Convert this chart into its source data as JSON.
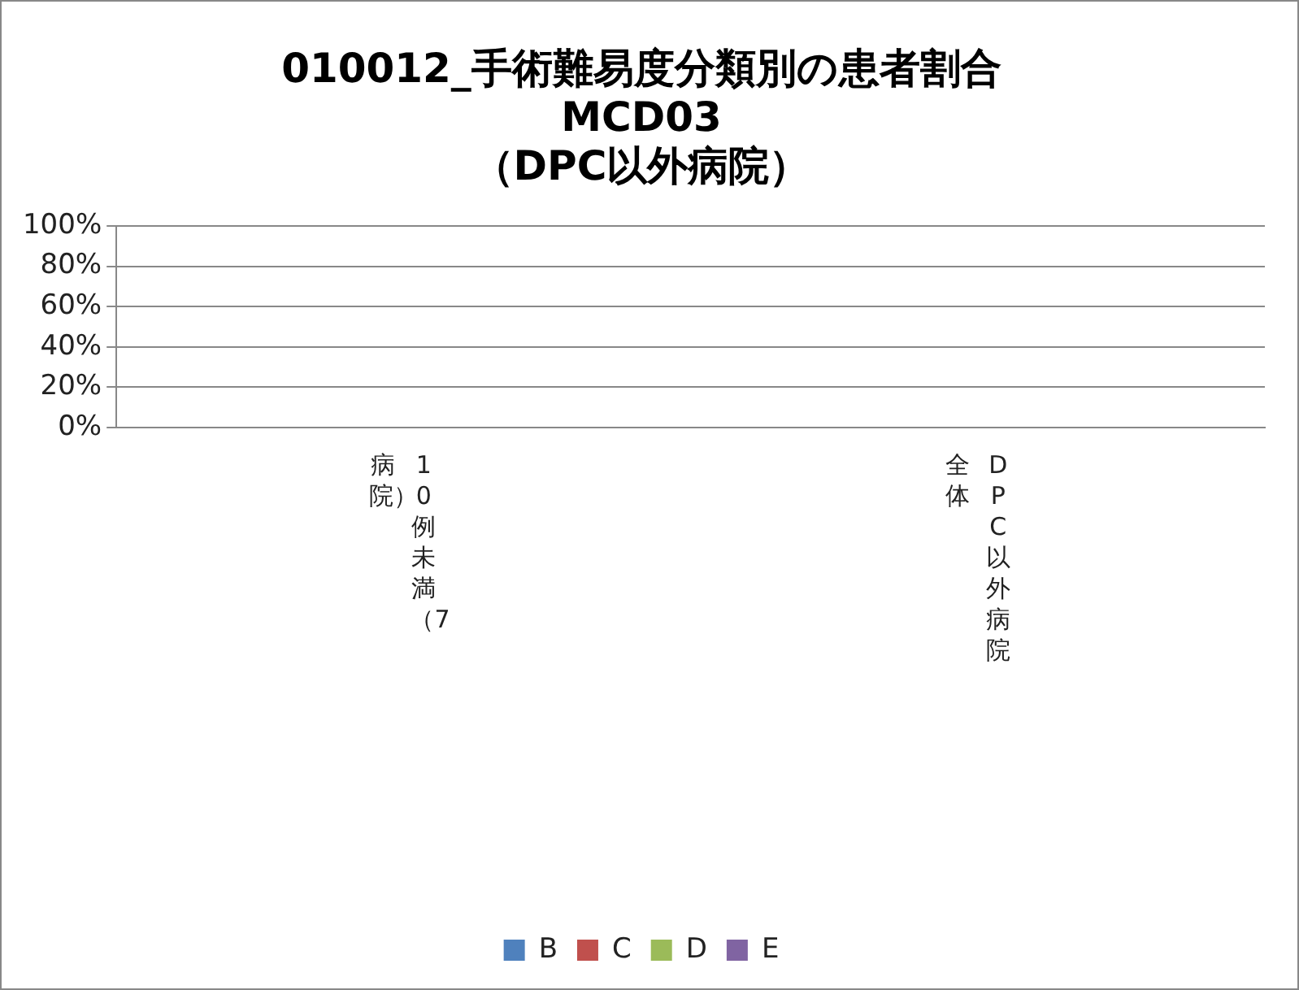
{
  "chart_data": {
    "type": "bar",
    "title": "010012_手術難易度分類別の患者割合\nMCD03\n（DPC以外病院）",
    "categories": [
      "10例未満（7病院）",
      "DPC以外病院全体"
    ],
    "series": [
      {
        "name": "B",
        "color": "#4f81bd",
        "values": [
          null,
          null
        ]
      },
      {
        "name": "C",
        "color": "#c0504d",
        "values": [
          null,
          null
        ]
      },
      {
        "name": "D",
        "color": "#9bbb59",
        "values": [
          null,
          null
        ]
      },
      {
        "name": "E",
        "color": "#8064a2",
        "values": [
          null,
          null
        ]
      }
    ],
    "ylim": [
      0,
      100
    ],
    "yticks": [
      {
        "value": 0,
        "label": "0%"
      },
      {
        "value": 20,
        "label": "20%"
      },
      {
        "value": 40,
        "label": "40%"
      },
      {
        "value": 60,
        "label": "60%"
      },
      {
        "value": 80,
        "label": "80%"
      },
      {
        "value": 100,
        "label": "100%"
      }
    ],
    "grid": "y",
    "legend": "bottom"
  }
}
